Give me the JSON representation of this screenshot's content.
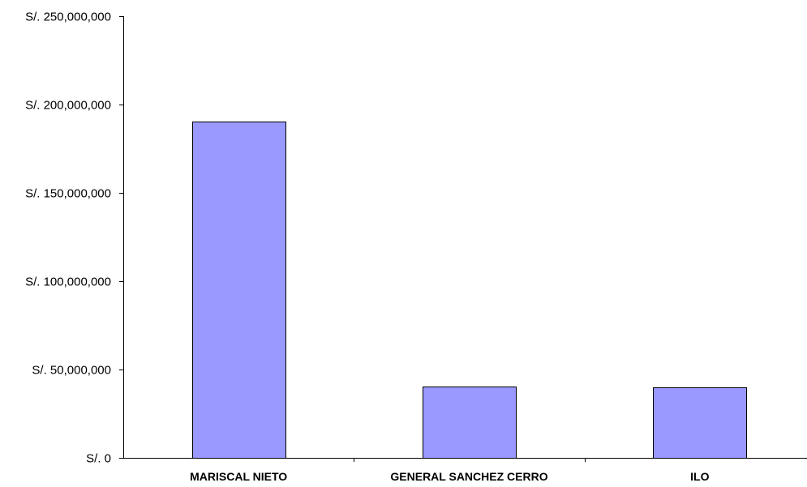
{
  "chart_data": {
    "type": "bar",
    "categories": [
      "MARISCAL NIETO",
      "GENERAL SANCHEZ CERRO",
      "ILO"
    ],
    "values": [
      190500000,
      40500000,
      40000000
    ],
    "title": "",
    "xlabel": "",
    "ylabel": "",
    "ylim": [
      0,
      250000000
    ],
    "yticks": [
      0,
      50000000,
      100000000,
      150000000,
      200000000,
      250000000
    ],
    "ytick_labels": [
      "S/. 0",
      "S/. 50,000,000",
      "S/. 100,000,000",
      "S/. 150,000,000",
      "S/. 200,000,000",
      "S/. 250,000,000"
    ],
    "grid": false,
    "legend": "none",
    "bar_color": "#9999ff",
    "bar_edge_color": "#000000"
  }
}
